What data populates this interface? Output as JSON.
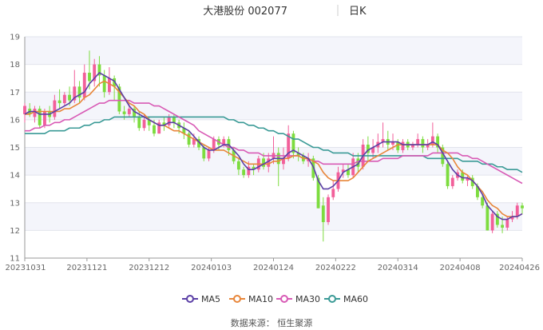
{
  "header": {
    "title": "大港股份 002077",
    "period": "日K"
  },
  "source": "数据来源： 恒生聚源",
  "colors": {
    "up": "#f25f9a",
    "down": "#7ddc3f",
    "ma5": "#5b3fa6",
    "ma10": "#e8863a",
    "ma30": "#d85ab5",
    "ma60": "#3a9a96",
    "band": "#f4f5fb",
    "grid": "#e2e4ec"
  },
  "chart_data": {
    "type": "candlestick",
    "ylim": [
      11,
      19
    ],
    "yticks": [
      11,
      12,
      13,
      14,
      15,
      16,
      17,
      18,
      19
    ],
    "xticks": [
      "20231031",
      "20231121",
      "20231212",
      "20240103",
      "20240124",
      "20240222",
      "20240314",
      "20240408",
      "20240426"
    ],
    "candles": [
      [
        16.2,
        16.5,
        15.9,
        16.6
      ],
      [
        16.4,
        16.2,
        16.1,
        16.6
      ],
      [
        16.1,
        16.4,
        15.9,
        16.5
      ],
      [
        16.4,
        15.8,
        15.7,
        16.5
      ],
      [
        15.8,
        16.3,
        15.7,
        16.4
      ],
      [
        16.3,
        16.1,
        15.9,
        16.5
      ],
      [
        16.1,
        16.7,
        16.0,
        16.9
      ],
      [
        16.7,
        16.6,
        16.4,
        17.1
      ],
      [
        16.6,
        16.9,
        16.5,
        17.0
      ],
      [
        16.9,
        16.7,
        16.5,
        17.2
      ],
      [
        16.7,
        17.2,
        16.6,
        17.8
      ],
      [
        17.2,
        16.8,
        16.6,
        17.4
      ],
      [
        16.8,
        17.7,
        16.7,
        18.0
      ],
      [
        17.7,
        17.4,
        17.1,
        18.5
      ],
      [
        17.4,
        18.0,
        17.2,
        18.2
      ],
      [
        18.0,
        17.6,
        17.2,
        18.3
      ],
      [
        17.6,
        17.0,
        16.8,
        17.8
      ],
      [
        17.0,
        17.5,
        16.9,
        17.9
      ],
      [
        17.5,
        17.2,
        16.7,
        17.6
      ],
      [
        17.2,
        16.3,
        16.2,
        17.3
      ],
      [
        16.3,
        16.2,
        16.0,
        16.5
      ],
      [
        16.2,
        16.4,
        16.1,
        16.6
      ],
      [
        16.4,
        16.1,
        15.9,
        16.5
      ],
      [
        16.1,
        15.7,
        15.6,
        16.3
      ],
      [
        15.7,
        16.0,
        15.6,
        16.2
      ],
      [
        16.0,
        15.8,
        15.6,
        16.1
      ],
      [
        15.8,
        15.5,
        15.4,
        16.0
      ],
      [
        15.5,
        15.9,
        15.5,
        16.0
      ],
      [
        15.9,
        15.8,
        15.6,
        16.1
      ],
      [
        15.8,
        16.1,
        15.7,
        16.2
      ],
      [
        16.1,
        15.9,
        15.7,
        16.2
      ],
      [
        15.9,
        15.7,
        15.5,
        16.0
      ],
      [
        15.7,
        15.5,
        15.3,
        15.9
      ],
      [
        15.5,
        15.1,
        15.0,
        15.6
      ],
      [
        15.1,
        15.3,
        15.0,
        15.5
      ],
      [
        15.3,
        15.0,
        14.9,
        15.4
      ],
      [
        15.0,
        14.6,
        14.5,
        15.1
      ],
      [
        14.6,
        14.9,
        14.5,
        15.0
      ],
      [
        14.9,
        15.3,
        14.8,
        15.4
      ],
      [
        15.3,
        15.1,
        14.9,
        15.4
      ],
      [
        15.1,
        15.3,
        15.0,
        15.4
      ],
      [
        15.3,
        14.9,
        14.7,
        15.4
      ],
      [
        14.9,
        14.5,
        14.4,
        15.0
      ],
      [
        14.5,
        14.2,
        14.0,
        14.6
      ],
      [
        14.2,
        14.0,
        13.9,
        14.3
      ],
      [
        14.0,
        14.3,
        13.9,
        14.5
      ],
      [
        14.3,
        14.2,
        14.0,
        14.4
      ],
      [
        14.2,
        14.6,
        14.1,
        14.7
      ],
      [
        14.6,
        14.3,
        14.2,
        14.8
      ],
      [
        14.3,
        14.6,
        14.1,
        14.8
      ],
      [
        14.6,
        14.8,
        14.4,
        15.4
      ],
      [
        14.8,
        14.4,
        13.6,
        15.0
      ],
      [
        14.4,
        14.6,
        14.2,
        15.0
      ],
      [
        14.6,
        15.5,
        14.5,
        15.8
      ],
      [
        15.5,
        14.8,
        14.6,
        15.6
      ],
      [
        14.8,
        14.7,
        14.5,
        15.0
      ],
      [
        14.7,
        14.5,
        14.4,
        14.8
      ],
      [
        14.5,
        14.6,
        14.3,
        14.8
      ],
      [
        14.6,
        13.9,
        13.8,
        14.7
      ],
      [
        13.9,
        12.8,
        12.8,
        14.0
      ],
      [
        12.9,
        12.3,
        11.6,
        13.2
      ],
      [
        12.3,
        13.2,
        12.2,
        13.3
      ],
      [
        13.2,
        13.5,
        13.1,
        13.8
      ],
      [
        13.5,
        14.1,
        13.4,
        14.3
      ],
      [
        14.1,
        14.2,
        13.9,
        14.4
      ],
      [
        14.2,
        14.0,
        13.9,
        14.4
      ],
      [
        14.0,
        14.6,
        13.9,
        14.8
      ],
      [
        14.6,
        14.3,
        14.1,
        14.8
      ],
      [
        14.3,
        15.1,
        14.2,
        15.3
      ],
      [
        15.1,
        14.8,
        14.5,
        15.4
      ],
      [
        14.8,
        15.0,
        14.6,
        15.3
      ],
      [
        15.0,
        15.2,
        14.8,
        15.5
      ],
      [
        15.2,
        15.3,
        15.0,
        15.9
      ],
      [
        15.3,
        15.1,
        14.9,
        15.6
      ],
      [
        15.1,
        15.2,
        14.9,
        15.5
      ],
      [
        15.2,
        14.9,
        14.8,
        15.3
      ],
      [
        14.9,
        15.2,
        14.8,
        15.3
      ],
      [
        15.2,
        15.0,
        14.9,
        15.3
      ],
      [
        15.0,
        15.1,
        14.9,
        15.2
      ],
      [
        15.1,
        15.3,
        15.0,
        15.5
      ],
      [
        15.3,
        15.0,
        14.8,
        15.4
      ],
      [
        15.0,
        15.1,
        14.9,
        15.3
      ],
      [
        15.1,
        15.4,
        15.0,
        15.9
      ],
      [
        15.4,
        15.0,
        14.8,
        15.5
      ],
      [
        15.0,
        14.4,
        14.3,
        15.1
      ],
      [
        14.4,
        13.6,
        13.5,
        14.5
      ],
      [
        13.6,
        13.9,
        13.5,
        14.0
      ],
      [
        13.9,
        14.1,
        13.8,
        14.2
      ],
      [
        14.1,
        13.8,
        13.7,
        14.2
      ],
      [
        13.8,
        13.9,
        13.6,
        14.0
      ],
      [
        13.9,
        13.6,
        13.5,
        14.0
      ],
      [
        13.6,
        13.2,
        13.1,
        13.7
      ],
      [
        13.2,
        12.9,
        12.8,
        13.3
      ],
      [
        12.9,
        12.0,
        12.0,
        13.0
      ],
      [
        12.0,
        12.6,
        11.9,
        12.7
      ],
      [
        12.6,
        12.2,
        12.1,
        12.7
      ],
      [
        12.2,
        12.1,
        11.9,
        12.5
      ],
      [
        12.1,
        12.4,
        12.0,
        12.5
      ],
      [
        12.4,
        12.5,
        12.3,
        12.7
      ],
      [
        12.5,
        12.9,
        12.4,
        13.0
      ],
      [
        12.9,
        12.8,
        12.6,
        13.0
      ]
    ],
    "ma5": [
      16.2,
      16.3,
      16.3,
      16.2,
      16.2,
      16.2,
      16.3,
      16.4,
      16.5,
      16.6,
      16.8,
      16.9,
      17.0,
      17.3,
      17.5,
      17.7,
      17.6,
      17.5,
      17.4,
      17.1,
      16.8,
      16.5,
      16.3,
      16.2,
      16.1,
      16.0,
      15.9,
      15.8,
      15.8,
      15.9,
      15.9,
      15.8,
      15.7,
      15.6,
      15.4,
      15.2,
      15.0,
      14.9,
      14.9,
      15.0,
      15.1,
      15.1,
      14.9,
      14.7,
      14.4,
      14.2,
      14.2,
      14.3,
      14.4,
      14.5,
      14.6,
      14.6,
      14.6,
      14.8,
      14.9,
      14.8,
      14.7,
      14.6,
      14.3,
      13.8,
      13.5,
      13.5,
      13.6,
      13.8,
      14.1,
      14.2,
      14.3,
      14.4,
      14.7,
      14.9,
      15.0,
      15.1,
      15.2,
      15.2,
      15.2,
      15.2,
      15.1,
      15.1,
      15.1,
      15.1,
      15.1,
      15.1,
      15.2,
      15.1,
      14.8,
      14.5,
      14.2,
      14.0,
      13.9,
      13.9,
      13.8,
      13.6,
      13.3,
      12.9,
      12.7,
      12.5,
      12.4,
      12.4,
      12.5,
      12.5,
      12.6
    ],
    "ma10": [
      16.2,
      16.2,
      16.3,
      16.3,
      16.3,
      16.3,
      16.3,
      16.3,
      16.4,
      16.4,
      16.5,
      16.6,
      16.8,
      16.9,
      17.1,
      17.3,
      17.4,
      17.3,
      17.2,
      17.0,
      16.8,
      16.6,
      16.5,
      16.3,
      16.2,
      16.0,
      15.9,
      15.8,
      15.8,
      15.7,
      15.6,
      15.6,
      15.5,
      15.4,
      15.3,
      15.2,
      15.1,
      15.0,
      14.9,
      14.9,
      14.9,
      14.8,
      14.7,
      14.6,
      14.5,
      14.4,
      14.4,
      14.4,
      14.4,
      14.4,
      14.5,
      14.5,
      14.6,
      14.6,
      14.7,
      14.7,
      14.6,
      14.6,
      14.5,
      14.4,
      14.1,
      13.9,
      13.8,
      13.8,
      13.8,
      13.8,
      13.9,
      14.1,
      14.3,
      14.5,
      14.6,
      14.7,
      14.8,
      14.9,
      15.0,
      15.1,
      15.1,
      15.1,
      15.1,
      15.1,
      15.1,
      15.1,
      15.1,
      15.1,
      14.9,
      14.8,
      14.6,
      14.3,
      14.1,
      14.0,
      13.8,
      13.6,
      13.4,
      13.1,
      12.9,
      12.8,
      12.6,
      12.5,
      12.5,
      12.5,
      12.6
    ],
    "ma30": [
      15.6,
      15.6,
      15.7,
      15.7,
      15.8,
      15.8,
      15.9,
      15.9,
      16.0,
      16.0,
      16.1,
      16.2,
      16.3,
      16.4,
      16.5,
      16.6,
      16.6,
      16.7,
      16.7,
      16.7,
      16.7,
      16.7,
      16.6,
      16.6,
      16.6,
      16.6,
      16.5,
      16.5,
      16.4,
      16.3,
      16.2,
      16.1,
      16.0,
      15.9,
      15.8,
      15.6,
      15.5,
      15.4,
      15.3,
      15.2,
      15.1,
      15.0,
      15.0,
      14.9,
      14.9,
      14.8,
      14.8,
      14.8,
      14.7,
      14.7,
      14.7,
      14.7,
      14.7,
      14.7,
      14.7,
      14.7,
      14.6,
      14.6,
      14.5,
      14.5,
      14.4,
      14.4,
      14.4,
      14.4,
      14.4,
      14.4,
      14.4,
      14.5,
      14.5,
      14.5,
      14.5,
      14.5,
      14.6,
      14.6,
      14.6,
      14.6,
      14.7,
      14.7,
      14.7,
      14.7,
      14.7,
      14.7,
      14.8,
      14.8,
      14.8,
      14.8,
      14.8,
      14.8,
      14.7,
      14.7,
      14.6,
      14.6,
      14.5,
      14.4,
      14.3,
      14.2,
      14.1,
      14.0,
      13.9,
      13.8,
      13.7
    ],
    "ma60": [
      15.5,
      15.5,
      15.5,
      15.5,
      15.5,
      15.6,
      15.6,
      15.6,
      15.6,
      15.7,
      15.7,
      15.7,
      15.8,
      15.8,
      15.9,
      15.9,
      16.0,
      16.0,
      16.1,
      16.1,
      16.1,
      16.1,
      16.1,
      16.1,
      16.1,
      16.1,
      16.1,
      16.1,
      16.1,
      16.1,
      16.1,
      16.1,
      16.1,
      16.1,
      16.1,
      16.1,
      16.1,
      16.1,
      16.1,
      16.1,
      16.1,
      16.0,
      16.0,
      15.9,
      15.9,
      15.8,
      15.8,
      15.7,
      15.7,
      15.6,
      15.6,
      15.5,
      15.5,
      15.4,
      15.3,
      15.3,
      15.2,
      15.1,
      15.0,
      15.0,
      14.9,
      14.9,
      14.8,
      14.8,
      14.8,
      14.8,
      14.7,
      14.7,
      14.7,
      14.7,
      14.7,
      14.7,
      14.7,
      14.7,
      14.7,
      14.7,
      14.7,
      14.7,
      14.7,
      14.7,
      14.7,
      14.6,
      14.6,
      14.6,
      14.6,
      14.6,
      14.6,
      14.6,
      14.5,
      14.5,
      14.5,
      14.5,
      14.4,
      14.4,
      14.4,
      14.3,
      14.3,
      14.2,
      14.2,
      14.2,
      14.1
    ],
    "legend": [
      "MA5",
      "MA10",
      "MA30",
      "MA60"
    ]
  }
}
